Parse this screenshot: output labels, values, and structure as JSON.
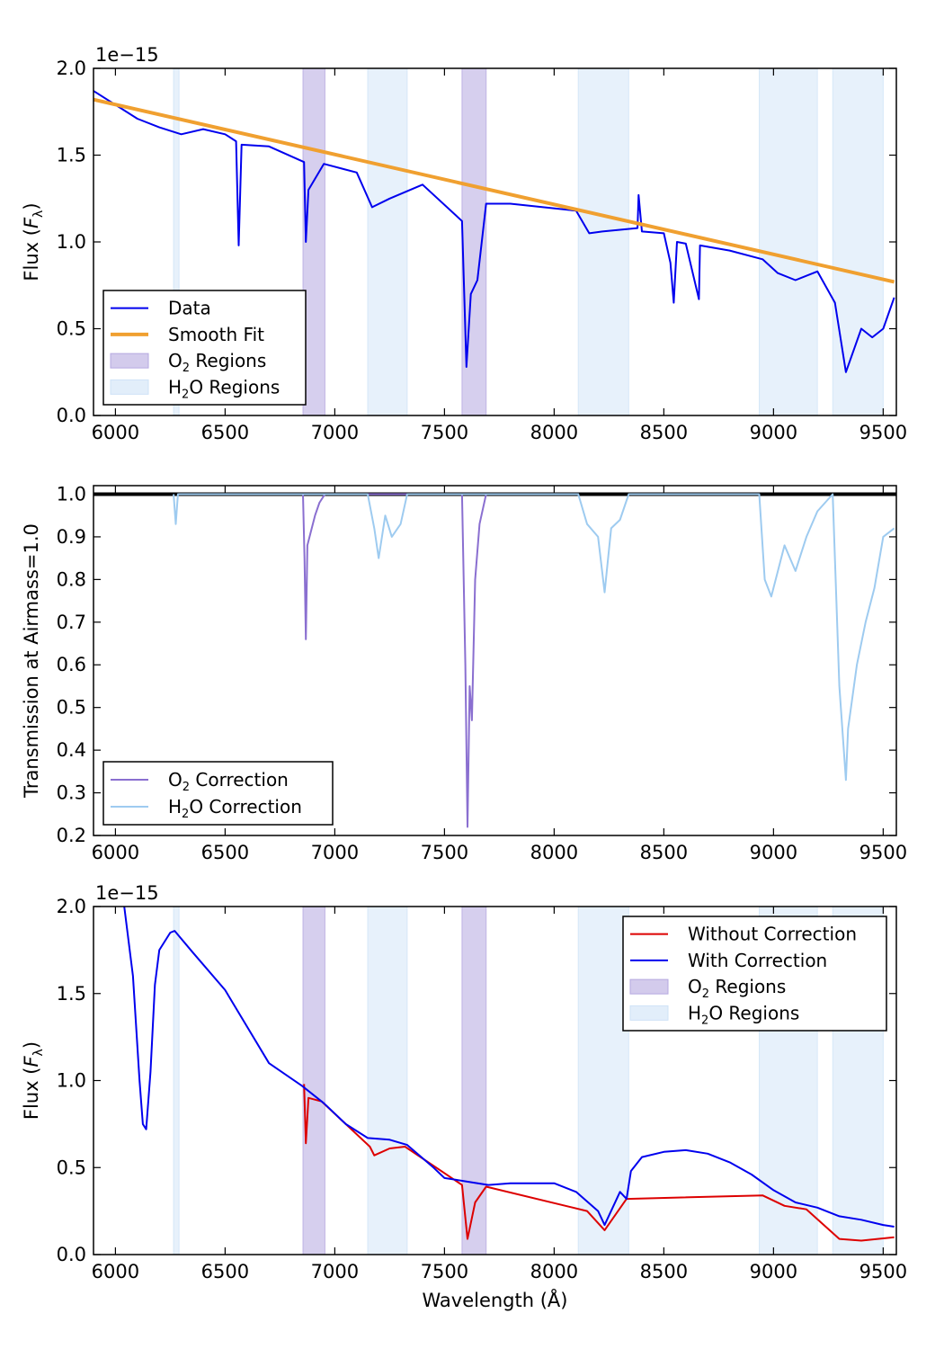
{
  "chart_data": [
    {
      "type": "line",
      "ylabel": "Flux (F_λ)",
      "ylabel_main": "Flux (",
      "ylabel_sym": "F",
      "ylabel_sub": "λ",
      "ylabel_close": ")",
      "offset_text": "1e−15",
      "xlim": [
        5900,
        9560
      ],
      "ylim": [
        0.0,
        2.0
      ],
      "xticks": [
        6000,
        6500,
        7000,
        7500,
        8000,
        8500,
        9000,
        9500
      ],
      "yticks": [
        "0.0",
        "0.5",
        "1.0",
        "1.5",
        "2.0"
      ],
      "ytick_values": [
        0.0,
        0.5,
        1.0,
        1.5,
        2.0
      ],
      "legend": {
        "position": "lower-left",
        "entries": [
          {
            "label": "Data",
            "kind": "line",
            "color": "#0000ee"
          },
          {
            "label": "Smooth Fit",
            "kind": "line",
            "color": "#f0a030"
          },
          {
            "label": "O₂ Regions",
            "kind": "patch",
            "color": "#b5a8e0"
          },
          {
            "label": "H₂O Regions",
            "kind": "patch",
            "color": "#cfe3f7"
          }
        ]
      },
      "series": [
        {
          "name": "Data",
          "color": "#0000ee",
          "x": [
            5900,
            6000,
            6100,
            6200,
            6300,
            6400,
            6500,
            6550,
            6562,
            6575,
            6700,
            6860,
            6868,
            6880,
            6950,
            7100,
            7170,
            7250,
            7400,
            7580,
            7600,
            7620,
            7650,
            7690,
            7800,
            7950,
            8100,
            8160,
            8220,
            8300,
            8380,
            8385,
            8400,
            8500,
            8530,
            8545,
            8560,
            8600,
            8660,
            8665,
            8800,
            8950,
            9020,
            9100,
            9200,
            9280,
            9330,
            9400,
            9450,
            9500,
            9550
          ],
          "y": [
            1.87,
            1.79,
            1.71,
            1.66,
            1.62,
            1.65,
            1.62,
            1.58,
            0.98,
            1.56,
            1.55,
            1.46,
            1.0,
            1.3,
            1.45,
            1.4,
            1.2,
            1.25,
            1.33,
            1.12,
            0.28,
            0.7,
            0.78,
            1.22,
            1.22,
            1.2,
            1.18,
            1.05,
            1.06,
            1.07,
            1.08,
            1.27,
            1.06,
            1.05,
            0.88,
            0.65,
            1.0,
            0.99,
            0.67,
            0.98,
            0.95,
            0.9,
            0.82,
            0.78,
            0.83,
            0.65,
            0.25,
            0.5,
            0.45,
            0.5,
            0.68
          ]
        },
        {
          "name": "Smooth Fit",
          "color": "#f0a030",
          "x": [
            5900,
            9550
          ],
          "y": [
            1.82,
            0.77
          ]
        }
      ],
      "shaded_regions": [
        {
          "kind": "H₂O",
          "xmin": 6265,
          "xmax": 6290
        },
        {
          "kind": "O₂",
          "xmin": 6855,
          "xmax": 6955
        },
        {
          "kind": "H₂O",
          "xmin": 7150,
          "xmax": 7330
        },
        {
          "kind": "O₂",
          "xmin": 7580,
          "xmax": 7690
        },
        {
          "kind": "H₂O",
          "xmin": 8110,
          "xmax": 8340
        },
        {
          "kind": "H₂O",
          "xmin": 8935,
          "xmax": 9200
        },
        {
          "kind": "H₂O",
          "xmin": 9270,
          "xmax": 9500
        }
      ]
    },
    {
      "type": "line",
      "ylabel": "Transmission at Airmass=1.0",
      "xlim": [
        5900,
        9560
      ],
      "ylim": [
        0.2,
        1.02
      ],
      "xticks": [
        6000,
        6500,
        7000,
        7500,
        8000,
        8500,
        9000,
        9500
      ],
      "yticks": [
        "0.2",
        "0.3",
        "0.4",
        "0.5",
        "0.6",
        "0.7",
        "0.8",
        "0.9",
        "1.0"
      ],
      "ytick_values": [
        0.2,
        0.3,
        0.4,
        0.5,
        0.6,
        0.7,
        0.8,
        0.9,
        1.0
      ],
      "reference_line": {
        "y": 1.0,
        "color": "#000000"
      },
      "legend": {
        "position": "lower-left",
        "entries": [
          {
            "label": "O₂ Correction",
            "kind": "line",
            "color": "#8a6fd0"
          },
          {
            "label": "H₂O Correction",
            "kind": "line",
            "color": "#9ecbf0"
          }
        ]
      },
      "series": [
        {
          "name": "O₂ Correction",
          "color": "#8a6fd0",
          "x": [
            6855,
            6862,
            6868,
            6875,
            6890,
            6910,
            6930,
            6955,
            7580,
            7595,
            7605,
            7615,
            7625,
            7640,
            7660,
            7690
          ],
          "y": [
            1.0,
            0.85,
            0.66,
            0.88,
            0.91,
            0.95,
            0.98,
            1.0,
            1.0,
            0.6,
            0.22,
            0.55,
            0.47,
            0.8,
            0.93,
            1.0
          ]
        },
        {
          "name": "H₂O Correction",
          "color": "#9ecbf0",
          "x": [
            6265,
            6275,
            6285,
            7150,
            7180,
            7200,
            7230,
            7260,
            7300,
            7330,
            8110,
            8150,
            8200,
            8230,
            8260,
            8300,
            8340,
            8935,
            8960,
            8990,
            9050,
            9100,
            9150,
            9200,
            9270,
            9300,
            9330,
            9340,
            9380,
            9420,
            9460,
            9500,
            9550
          ],
          "y": [
            1.0,
            0.93,
            1.0,
            1.0,
            0.92,
            0.85,
            0.95,
            0.9,
            0.93,
            1.0,
            1.0,
            0.93,
            0.9,
            0.77,
            0.92,
            0.94,
            1.0,
            1.0,
            0.8,
            0.76,
            0.88,
            0.82,
            0.9,
            0.96,
            1.0,
            0.55,
            0.33,
            0.45,
            0.6,
            0.7,
            0.78,
            0.9,
            0.92
          ]
        }
      ],
      "shaded_regions": []
    },
    {
      "type": "line",
      "xlabel": "Wavelength (Å)",
      "ylabel": "Flux (F_λ)",
      "ylabel_main": "Flux (",
      "ylabel_sym": "F",
      "ylabel_sub": "λ",
      "ylabel_close": ")",
      "offset_text": "1e−15",
      "xlim": [
        5900,
        9560
      ],
      "ylim": [
        0.0,
        2.0
      ],
      "xticks": [
        6000,
        6500,
        7000,
        7500,
        8000,
        8500,
        9000,
        9500
      ],
      "yticks": [
        "0.0",
        "0.5",
        "1.0",
        "1.5",
        "2.0"
      ],
      "ytick_values": [
        0.0,
        0.5,
        1.0,
        1.5,
        2.0
      ],
      "legend": {
        "position": "top-right",
        "entries": [
          {
            "label": "Without Correction",
            "kind": "line",
            "color": "#dd0000"
          },
          {
            "label": "With Correction",
            "kind": "line",
            "color": "#0000ee"
          },
          {
            "label": "O₂ Regions",
            "kind": "patch",
            "color": "#b5a8e0"
          },
          {
            "label": "H₂O Regions",
            "kind": "patch",
            "color": "#cfe3f7"
          }
        ]
      },
      "series": [
        {
          "name": "Without Correction",
          "color": "#dd0000",
          "x": [
            6860,
            6868,
            6880,
            6940,
            7160,
            7180,
            7250,
            7320,
            7580,
            7605,
            7640,
            7690,
            8150,
            8230,
            8330,
            8950,
            9050,
            9150,
            9300,
            9400,
            9550
          ],
          "y": [
            0.98,
            0.64,
            0.9,
            0.88,
            0.62,
            0.57,
            0.61,
            0.62,
            0.4,
            0.09,
            0.3,
            0.39,
            0.25,
            0.14,
            0.32,
            0.34,
            0.28,
            0.26,
            0.09,
            0.08,
            0.1
          ]
        },
        {
          "name": "With Correction",
          "color": "#0000ee",
          "x": [
            6040,
            6080,
            6110,
            6125,
            6140,
            6160,
            6180,
            6200,
            6250,
            6270,
            6350,
            6500,
            6700,
            6850,
            6950,
            7050,
            7150,
            7250,
            7330,
            7450,
            7500,
            7600,
            7700,
            7800,
            7900,
            8000,
            8100,
            8200,
            8230,
            8300,
            8330,
            8350,
            8400,
            8500,
            8600,
            8700,
            8800,
            8900,
            9000,
            9100,
            9200,
            9300,
            9400,
            9500,
            9550
          ],
          "y": [
            2.0,
            1.6,
            1.0,
            0.75,
            0.72,
            1.05,
            1.55,
            1.75,
            1.85,
            1.86,
            1.74,
            1.52,
            1.1,
            0.97,
            0.87,
            0.75,
            0.67,
            0.66,
            0.63,
            0.5,
            0.44,
            0.42,
            0.4,
            0.41,
            0.41,
            0.41,
            0.36,
            0.25,
            0.17,
            0.36,
            0.32,
            0.48,
            0.56,
            0.59,
            0.6,
            0.58,
            0.53,
            0.46,
            0.37,
            0.3,
            0.27,
            0.22,
            0.2,
            0.17,
            0.16
          ]
        }
      ],
      "shaded_regions": [
        {
          "kind": "H₂O",
          "xmin": 6265,
          "xmax": 6290
        },
        {
          "kind": "O₂",
          "xmin": 6855,
          "xmax": 6955
        },
        {
          "kind": "H₂O",
          "xmin": 7150,
          "xmax": 7330
        },
        {
          "kind": "O₂",
          "xmin": 7580,
          "xmax": 7690
        },
        {
          "kind": "H₂O",
          "xmin": 8110,
          "xmax": 8340
        },
        {
          "kind": "H₂O",
          "xmin": 8935,
          "xmax": 9200
        },
        {
          "kind": "H₂O",
          "xmin": 9270,
          "xmax": 9500
        }
      ]
    }
  ],
  "colors": {
    "o2_region": "#b5a8e0",
    "h2o_region": "#cfe3f7"
  }
}
